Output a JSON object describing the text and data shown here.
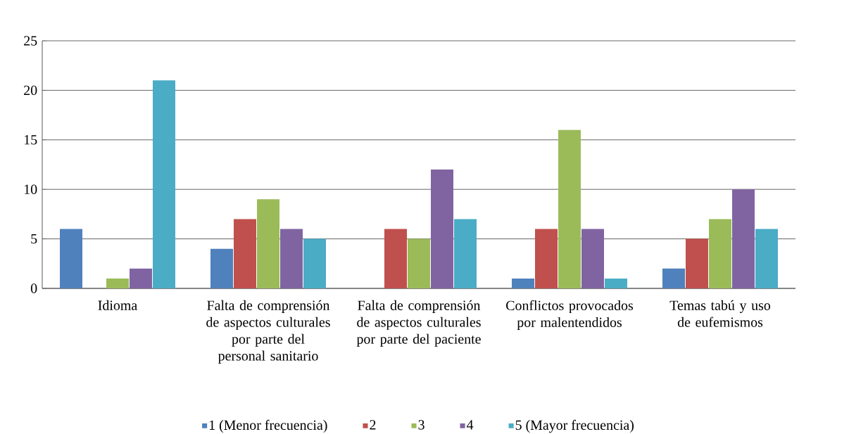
{
  "chart_data": {
    "type": "bar",
    "categories": [
      "Idioma",
      "Falta de comprensión de aspectos culturales por parte del personal sanitario",
      "Falta de comprensión de aspectos culturales por parte del paciente",
      "Conflictos provocados por malentendidos",
      "Temas tabú y uso de eufemismos"
    ],
    "series": [
      {
        "name": "1 (Menor frecuencia)",
        "color": "#4f81bd",
        "values": [
          6,
          4,
          0,
          1,
          2
        ]
      },
      {
        "name": "2",
        "color": "#c0504d",
        "values": [
          0,
          7,
          6,
          6,
          5
        ]
      },
      {
        "name": "3",
        "color": "#9bbb59",
        "values": [
          1,
          9,
          5,
          16,
          7
        ]
      },
      {
        "name": "4",
        "color": "#8064a2",
        "values": [
          2,
          6,
          12,
          6,
          10
        ]
      },
      {
        "name": "5 (Mayor frecuencia)",
        "color": "#4bacc6",
        "values": [
          21,
          5,
          7,
          1,
          6
        ]
      }
    ],
    "ylim": [
      0,
      25
    ],
    "yticks": [
      0,
      5,
      10,
      15,
      20,
      25
    ],
    "grid": "y",
    "legend": "bottom"
  }
}
